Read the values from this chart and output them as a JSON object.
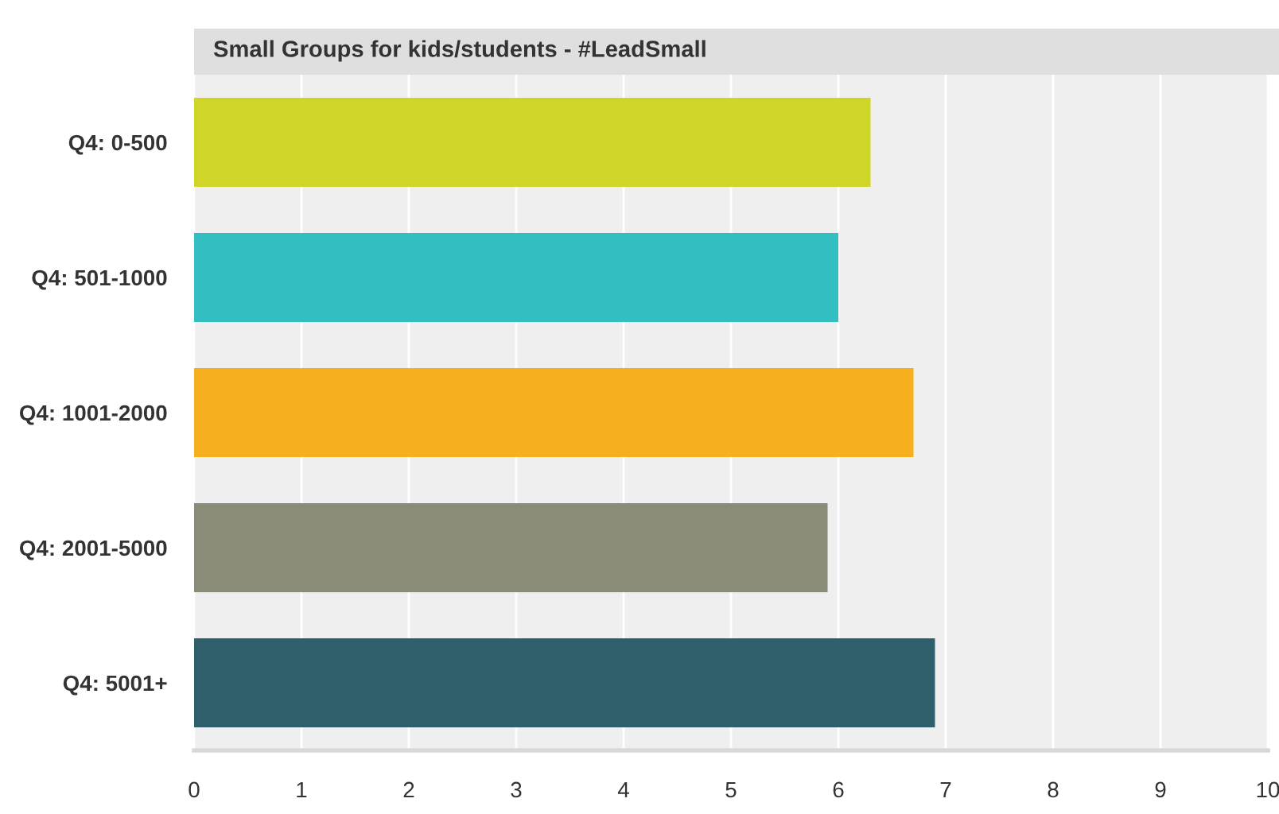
{
  "chart_data": {
    "type": "bar",
    "orientation": "horizontal",
    "title": "Small Groups for kids/students - #LeadSmall",
    "categories": [
      "Q4: 0-500",
      "Q4: 501-1000",
      "Q4: 1001-2000",
      "Q4: 2001-5000",
      "Q4: 5001+"
    ],
    "values": [
      6.3,
      6.0,
      6.7,
      5.9,
      6.9
    ],
    "colors": [
      "#cfd628",
      "#33bfc1",
      "#f5af1f",
      "#8a8b79",
      "#2e5f6b"
    ],
    "xlim": [
      0,
      10
    ],
    "xticks": [
      0,
      1,
      2,
      3,
      4,
      5,
      6,
      7,
      8,
      9,
      10
    ],
    "grid": "x"
  }
}
